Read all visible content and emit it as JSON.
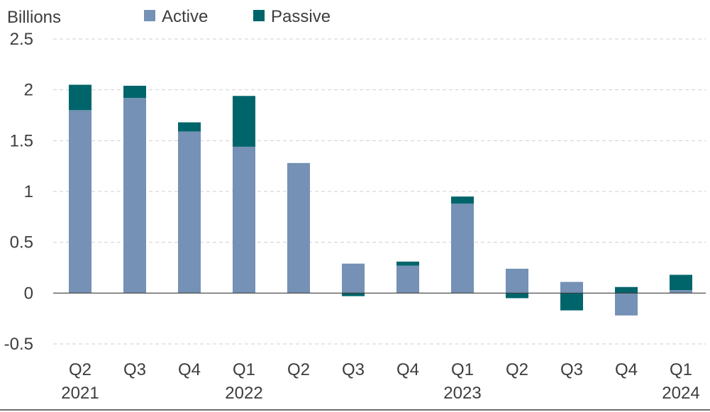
{
  "chart_data": {
    "type": "bar",
    "stacked": true,
    "ylabel": "Billions",
    "ylim": [
      -0.5,
      2.5
    ],
    "yticks": [
      "2.5",
      "2",
      "1.5",
      "1",
      "0.5",
      "0",
      "-0.5"
    ],
    "grid": true,
    "legend_position": "top",
    "categories": [
      "Q2",
      "Q3",
      "Q4",
      "Q1",
      "Q2",
      "Q3",
      "Q4",
      "Q1",
      "Q2",
      "Q3",
      "Q4",
      "Q1"
    ],
    "year_labels": [
      "2021",
      "",
      "",
      "2022",
      "",
      "",
      "",
      "2023",
      "",
      "",
      "",
      "2024"
    ],
    "series": [
      {
        "name": "Active",
        "color": "#7591b5",
        "values": [
          1.8,
          1.92,
          1.59,
          1.44,
          1.28,
          0.29,
          0.27,
          0.88,
          0.24,
          0.11,
          -0.22,
          0.03
        ]
      },
      {
        "name": "Passive",
        "color": "#00656b",
        "values": [
          0.25,
          0.12,
          0.09,
          0.5,
          0.0,
          -0.03,
          0.04,
          0.07,
          -0.05,
          -0.17,
          0.06,
          0.15
        ]
      }
    ]
  }
}
